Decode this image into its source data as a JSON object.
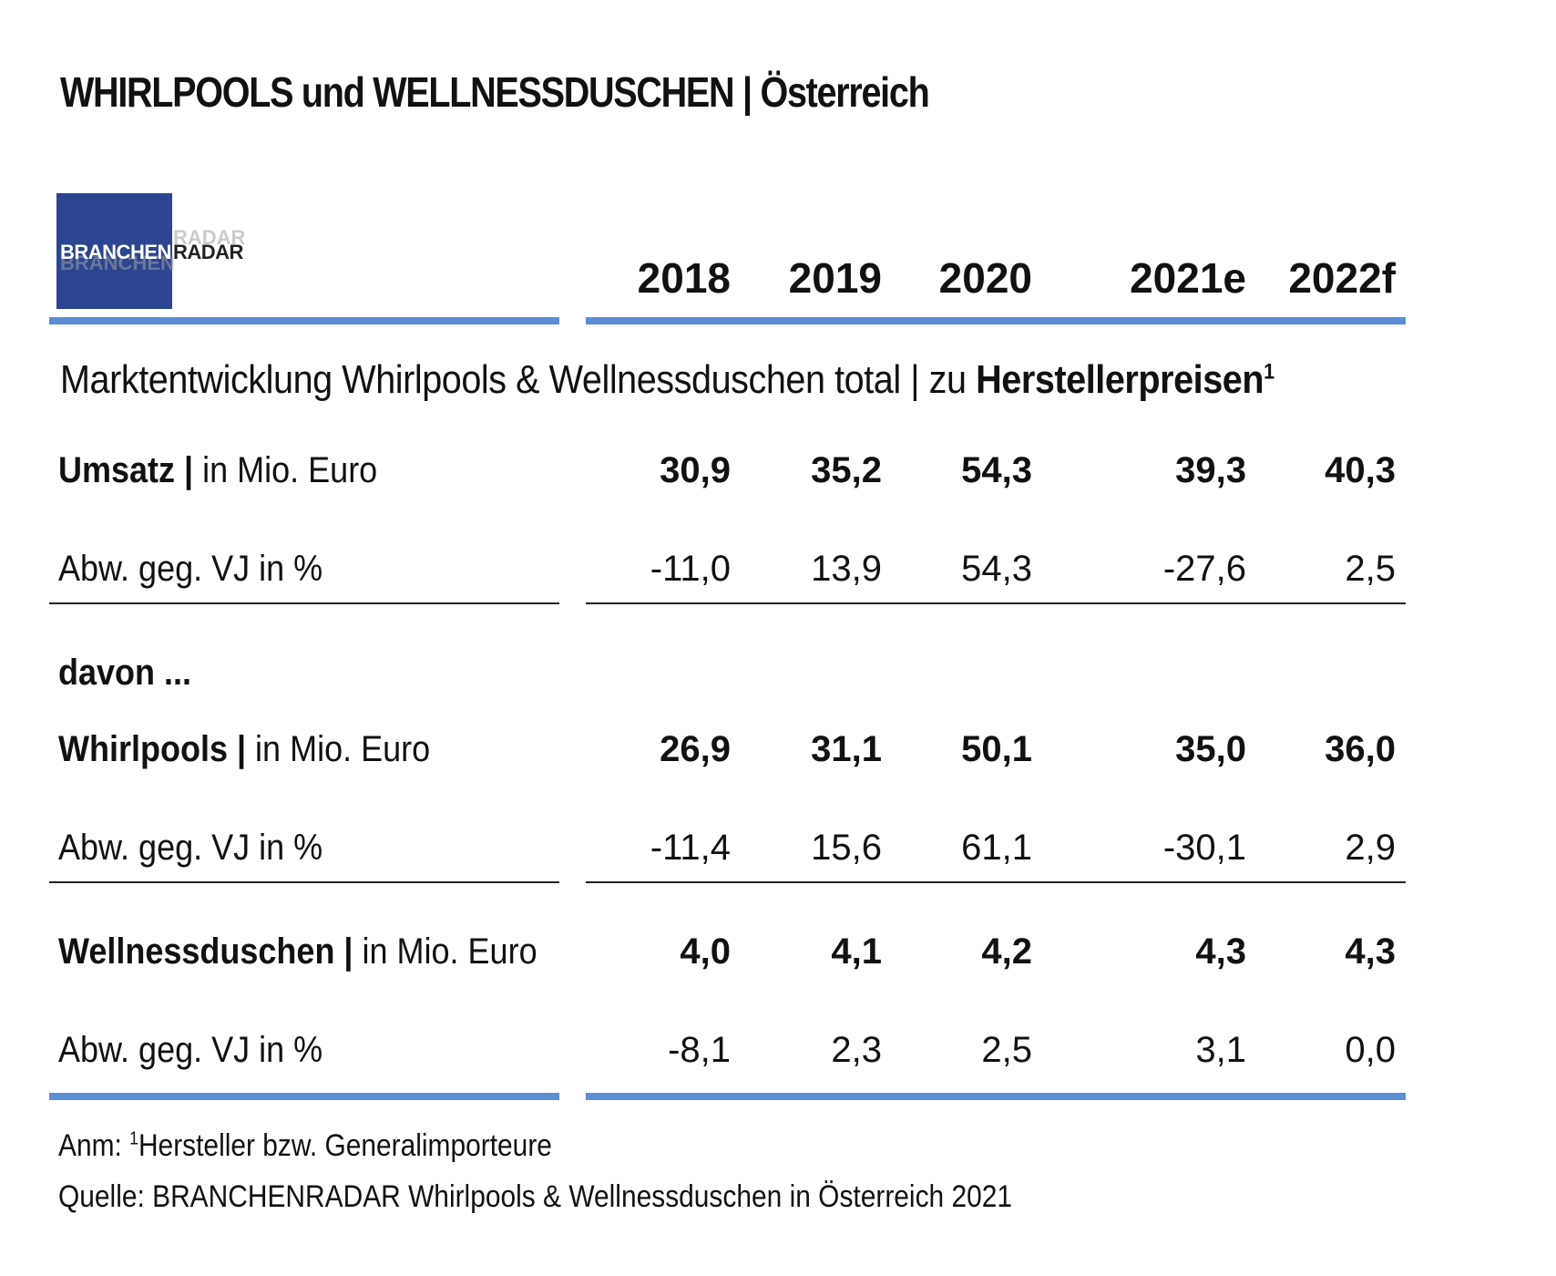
{
  "title": "WHIRLPOOLS und WELLNESSDUSCHEN | Österreich",
  "logo": {
    "part1": "BRANCHEN",
    "part2": "RADAR"
  },
  "colors": {
    "accent_rule": "#5b8ed4",
    "logo_box": "#2b4590"
  },
  "section": {
    "title_regular": "Marktentwicklung  Whirlpools & Wellnessduschen total | zu ",
    "title_bold": "Herstellerpreisen",
    "title_sup": "1"
  },
  "chart_data": {
    "type": "table",
    "columns": [
      "2018",
      "2019",
      "2020",
      "2021e",
      "2022f"
    ],
    "rows": [
      {
        "label_bold": "Umsatz |",
        "label_regular": " in Mio. Euro",
        "values": [
          "30,9",
          "35,2",
          "54,3",
          "39,3",
          "40,3"
        ]
      },
      {
        "label_bold": "",
        "label_regular": "Abw. geg. VJ in %",
        "values": [
          "-11,0",
          "13,9",
          "54,3",
          "-27,6",
          "2,5"
        ]
      },
      {
        "label_bold": "davon ...",
        "label_regular": "",
        "values": []
      },
      {
        "label_bold": "Whirlpools |",
        "label_regular": " in Mio. Euro",
        "values": [
          "26,9",
          "31,1",
          "50,1",
          "35,0",
          "36,0"
        ]
      },
      {
        "label_bold": "",
        "label_regular": "Abw. geg. VJ in %",
        "values": [
          "-11,4",
          "15,6",
          "61,1",
          "-30,1",
          "2,9"
        ]
      },
      {
        "label_bold": "Wellnessduschen |",
        "label_regular": " in Mio. Euro",
        "values": [
          "4,0",
          "4,1",
          "4,2",
          "4,3",
          "4,3"
        ]
      },
      {
        "label_bold": "",
        "label_regular": "Abw. geg. VJ in %",
        "values": [
          "-8,1",
          "2,3",
          "2,5",
          "3,1",
          "0,0"
        ]
      }
    ]
  },
  "footnotes": {
    "note_prefix": "Anm: ",
    "note_sup": "1",
    "note_text": "Hersteller bzw. Generalimporteure",
    "source": "Quelle: BRANCHENRADAR Whirlpools & Wellnessduschen in Österreich 2021"
  }
}
